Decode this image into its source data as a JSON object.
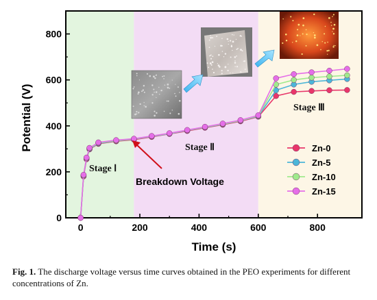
{
  "chart_data": {
    "type": "line",
    "xlabel": "Time (s)",
    "ylabel": "Potential (V)",
    "xlim": [
      -50,
      950
    ],
    "ylim": [
      0,
      900
    ],
    "xticks": [
      0,
      200,
      400,
      600,
      800
    ],
    "yticks": [
      0,
      200,
      400,
      600,
      800
    ],
    "stages": [
      {
        "label": "Stage Ⅰ",
        "x_range": [
          -50,
          180
        ],
        "color": "#e3f5df"
      },
      {
        "label": "Stage Ⅱ",
        "x_range": [
          180,
          600
        ],
        "color": "#f3dcf5"
      },
      {
        "label": "Stage Ⅲ",
        "x_range": [
          600,
          950
        ],
        "color": "#fdf6e6"
      }
    ],
    "annotation": {
      "text": "Breakdown Voltage",
      "x": 180,
      "y": 340
    },
    "legend_position": "bottom-right",
    "series": [
      {
        "name": "Zn-0",
        "color": "#e8366a",
        "x": [
          0,
          10,
          20,
          30,
          60,
          120,
          180,
          240,
          300,
          360,
          420,
          480,
          540,
          600,
          660,
          720,
          780,
          840,
          900
        ],
        "y": [
          0,
          180,
          255,
          298,
          322,
          333,
          340,
          352,
          365,
          378,
          392,
          405,
          420,
          440,
          530,
          548,
          552,
          555,
          556
        ]
      },
      {
        "name": "Zn-5",
        "color": "#4bb6d8",
        "x": [
          0,
          10,
          20,
          30,
          60,
          120,
          180,
          240,
          300,
          360,
          420,
          480,
          540,
          600,
          660,
          720,
          780,
          840,
          900
        ],
        "y": [
          0,
          183,
          258,
          300,
          324,
          335,
          342,
          354,
          366,
          380,
          394,
          407,
          422,
          442,
          555,
          580,
          592,
          598,
          604
        ]
      },
      {
        "name": "Zn-10",
        "color": "#9fea8c",
        "x": [
          0,
          10,
          20,
          30,
          60,
          120,
          180,
          240,
          300,
          360,
          420,
          480,
          540,
          600,
          660,
          720,
          780,
          840,
          900
        ],
        "y": [
          0,
          185,
          260,
          302,
          326,
          336,
          343,
          355,
          367,
          381,
          395,
          408,
          423,
          444,
          580,
          600,
          610,
          615,
          620
        ]
      },
      {
        "name": "Zn-15",
        "color": "#e56ee8",
        "x": [
          0,
          10,
          20,
          30,
          60,
          120,
          180,
          240,
          300,
          360,
          420,
          480,
          540,
          600,
          660,
          720,
          780,
          840,
          900
        ],
        "y": [
          0,
          187,
          262,
          304,
          328,
          338,
          344,
          356,
          368,
          382,
          396,
          410,
          425,
          446,
          607,
          625,
          633,
          640,
          648
        ]
      }
    ]
  },
  "caption": {
    "fig_label": "Fig. 1.",
    "text": "The discharge voltage versus time curves obtained in the PEO experiments for different concentrations of Zn."
  }
}
